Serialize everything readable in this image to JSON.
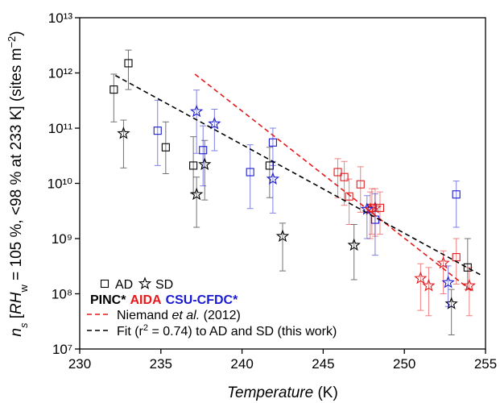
{
  "chart_data": {
    "type": "scatter",
    "x_label_parts": [
      "Temperature",
      " (K)"
    ],
    "y_label_parts": [
      "n",
      "s",
      " [",
      "RH",
      "w",
      " = 105 %, <98 % at 233 K] (sites m",
      "−2",
      ")"
    ],
    "xlim": [
      230,
      255
    ],
    "xticks": [
      230,
      235,
      240,
      245,
      250,
      255
    ],
    "ylim": [
      10000000,
      10000000000000
    ],
    "log_y": true,
    "yticks": [
      {
        "value": 10000000,
        "label": "10⁷"
      },
      {
        "value": 100000000,
        "label": "10⁸"
      },
      {
        "value": 1000000000,
        "label": "10⁹"
      },
      {
        "value": 10000000000,
        "label": "10¹⁰"
      },
      {
        "value": 100000000000,
        "label": "10¹¹"
      },
      {
        "value": 1000000000000,
        "label": "10¹²"
      },
      {
        "value": 10000000000000,
        "label": "10¹³"
      }
    ],
    "methods": [
      {
        "name": "AD",
        "marker": "square"
      },
      {
        "name": "SD",
        "marker": "star"
      }
    ],
    "groups": [
      {
        "name": "PINC*",
        "color": "#000000",
        "series": [
          {
            "x": [
              232.1,
              233.0,
              235.3,
              237.0,
              241.7,
              253.9
            ],
            "values": [
              500000000000.0,
              1500000000000.0,
              45000000000.0,
              21000000000.0,
              21000000000.0,
              300000000.0
            ],
            "ylow": [
              130000000000.0,
              500000000000.0,
              15000000000.0,
              6600000000.0,
              5500000000.0,
              120000000.0
            ],
            "yhigh": [
              950000000000.0,
              2600000000000.0,
              130000000000.0,
              70000000000.0,
              45000000000.0,
              1000000000.0
            ]
          },
          {
            "x": [
              232.7,
              237.2,
              237.7,
              242.5,
              246.9,
              252.9
            ],
            "values": [
              80000000000.0,
              6300000000.0,
              22000000000.0,
              1100000000.0,
              760000000.0,
              66000000.0
            ],
            "ylow": [
              19000000000.0,
              1600000000.0,
              5000000000.0,
              260000000.0,
              180000000.0,
              18000000.0
            ],
            "yhigh": [
              140000000000.0,
              13000000000.0,
              60000000000.0,
              1900000000.0,
              1800000000.0,
              120000000.0
            ]
          }
        ]
      },
      {
        "name": "AIDA",
        "color": "#e41a1c",
        "series": [
          {
            "x": [
              245.9,
              246.3,
              246.6,
              247.3,
              248.0,
              248.5,
              253.2
            ],
            "values": [
              16000000000.0,
              13000000000.0,
              5800000000.0,
              9600000000.0,
              3600000000.0,
              3600000000.0,
              460000000.0
            ],
            "ylow": [
              5500000000.0,
              4000000000.0,
              1800000000.0,
              3000000000.0,
              1200000000.0,
              1200000000.0,
              150000000.0
            ],
            "yhigh": [
              28000000000.0,
              25000000000.0,
              12000000000.0,
              20000000000.0,
              8000000000.0,
              7000000000.0,
              1000000000.0
            ]
          },
          {
            "x": [
              247.9,
              248.2,
              251.0,
              251.5,
              252.4,
              254.0
            ],
            "values": [
              3400000000.0,
              3600000000.0,
              190000000.0,
              140000000.0,
              360000000.0,
              140000000.0
            ],
            "ylow": [
              1000000000.0,
              1100000000.0,
              50000000.0,
              40000000.0,
              100000000.0,
              40000000.0
            ],
            "yhigh": [
              7000000000.0,
              8000000000.0,
              350000000.0,
              300000000.0,
              600000000.0,
              300000000.0
            ]
          }
        ]
      },
      {
        "name": "CSU-CFDC*",
        "color": "#1a1ad0",
        "series": [
          {
            "x": [
              234.8,
              237.6,
              240.5,
              241.9,
              248.2,
              253.2
            ],
            "values": [
              90000000000.0,
              40000000000.0,
              16000000000.0,
              55000000000.0,
              2200000000.0,
              6300000000.0
            ],
            "ylow": [
              21000000000.0,
              9000000000.0,
              3500000000.0,
              21000000000.0,
              500000000.0,
              1600000000.0
            ],
            "yhigh": [
              320000000000.0,
              110000000000.0,
              50000000000.0,
              100000000000.0,
              6500000000.0,
              11000000000.0
            ]
          },
          {
            "x": [
              237.2,
              238.3,
              241.9,
              247.7,
              252.7
            ],
            "values": [
              200000000000.0,
              120000000000.0,
              12000000000.0,
              3400000000.0,
              160000000.0
            ],
            "ylow": [
              35000000000.0,
              39000000000.0,
              2900000000.0,
              1000000000.0,
              59000000.0
            ],
            "yhigh": [
              490000000000.0,
              220000000000.0,
              25000000000.0,
              6000000000.0,
              320000000.0
            ]
          }
        ]
      }
    ],
    "lines": [
      {
        "label_parts": [
          "Niemand ",
          "et al.",
          " (2012)"
        ],
        "color": "#e41a1c",
        "x": [
          237.1,
          254.2
        ],
        "values": [
          950000000000.0,
          110000000.0
        ]
      },
      {
        "label_parts": [
          "Fit (r",
          "2",
          " = 0.74) to AD and SD (this work)"
        ],
        "color": "#000000",
        "x": [
          232.2,
          254.7
        ],
        "values": [
          900000000000.0,
          220000000.0
        ]
      }
    ]
  }
}
